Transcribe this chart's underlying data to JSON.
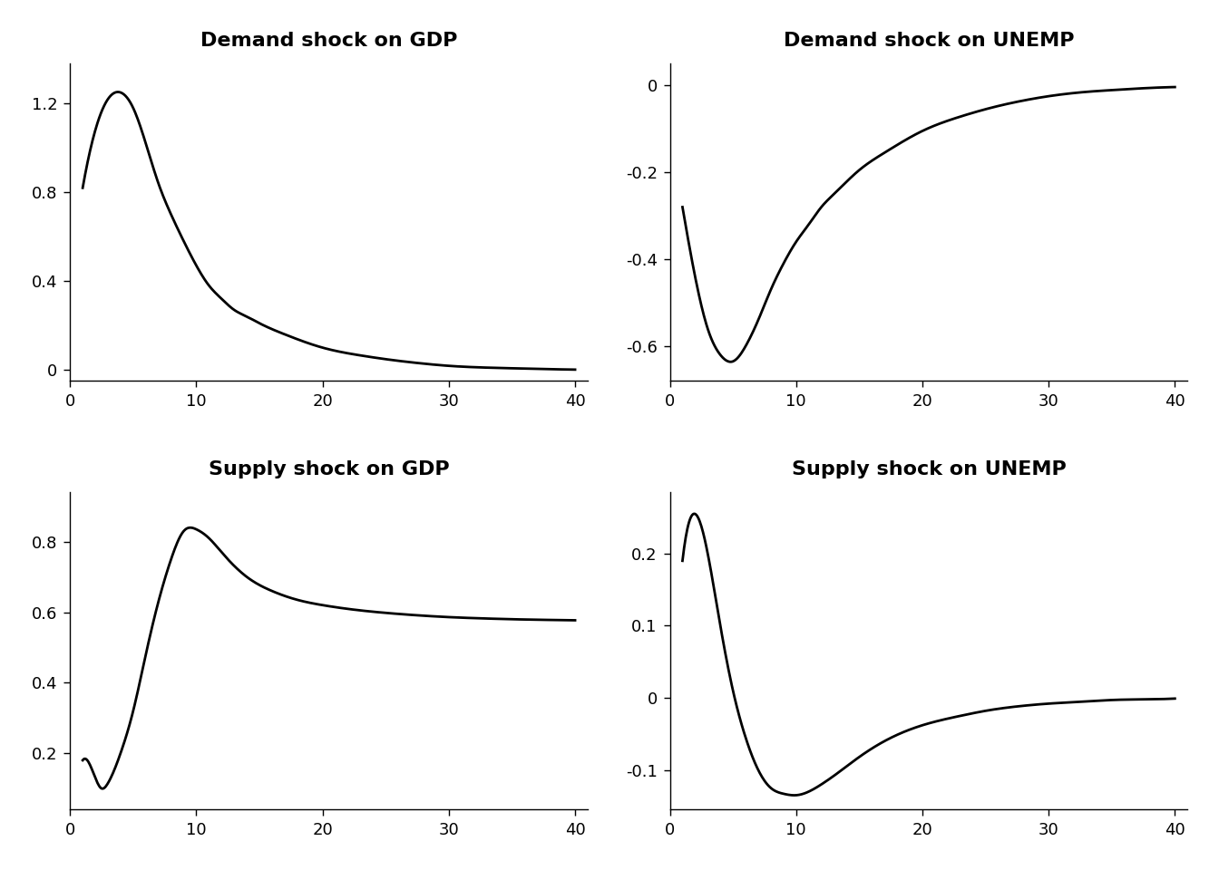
{
  "titles": [
    "Demand shock on GDP",
    "Demand shock on UNEMP",
    "Supply shock on GDP",
    "Supply shock on UNEMP"
  ],
  "xlim": [
    0,
    41
  ],
  "xticks": [
    0,
    10,
    20,
    30,
    40
  ],
  "panels": {
    "demand_gdp": {
      "ylim": [
        -0.05,
        1.38
      ],
      "yticks": [
        0.0,
        0.4,
        0.8,
        1.2
      ]
    },
    "demand_unemp": {
      "ylim": [
        -0.68,
        0.05
      ],
      "yticks": [
        -0.6,
        -0.4,
        -0.2,
        0.0
      ]
    },
    "supply_gdp": {
      "ylim": [
        0.04,
        0.94
      ],
      "yticks": [
        0.2,
        0.4,
        0.6,
        0.8
      ]
    },
    "supply_unemp": {
      "ylim": [
        -0.155,
        0.285
      ],
      "yticks": [
        -0.1,
        0.0,
        0.1,
        0.2
      ]
    }
  },
  "line_color": "#000000",
  "line_width": 2.0,
  "bg_color": "#ffffff",
  "title_fontsize": 16,
  "title_fontweight": "bold",
  "curves": {
    "demand_gdp": {
      "x": [
        1,
        2,
        3,
        4,
        5,
        6,
        7,
        8,
        9,
        10,
        11,
        12,
        13,
        14,
        15,
        17,
        20,
        23,
        25,
        28,
        30,
        33,
        35,
        38,
        40
      ],
      "y": [
        0.82,
        1.08,
        1.22,
        1.25,
        1.18,
        1.02,
        0.84,
        0.7,
        0.58,
        0.47,
        0.38,
        0.32,
        0.27,
        0.24,
        0.21,
        0.16,
        0.1,
        0.065,
        0.048,
        0.028,
        0.018,
        0.01,
        0.007,
        0.003,
        0.001
      ]
    },
    "demand_unemp": {
      "x": [
        1,
        2,
        3,
        4,
        5,
        6,
        7,
        8,
        9,
        10,
        11,
        12,
        13,
        15,
        17,
        20,
        23,
        25,
        28,
        30,
        33,
        35,
        38,
        40
      ],
      "y": [
        -0.28,
        -0.44,
        -0.56,
        -0.62,
        -0.635,
        -0.6,
        -0.54,
        -0.47,
        -0.41,
        -0.36,
        -0.32,
        -0.28,
        -0.25,
        -0.195,
        -0.155,
        -0.105,
        -0.072,
        -0.055,
        -0.035,
        -0.025,
        -0.015,
        -0.011,
        -0.006,
        -0.004
      ]
    },
    "supply_gdp": {
      "x": [
        1,
        2,
        2.5,
        3,
        4,
        5,
        6,
        7,
        8,
        9,
        10,
        11,
        12,
        14,
        16,
        18,
        20,
        23,
        25,
        28,
        30,
        33,
        35,
        38,
        40
      ],
      "y": [
        0.18,
        0.13,
        0.1,
        0.115,
        0.2,
        0.32,
        0.48,
        0.63,
        0.75,
        0.83,
        0.835,
        0.81,
        0.77,
        0.7,
        0.66,
        0.635,
        0.62,
        0.605,
        0.598,
        0.59,
        0.586,
        0.582,
        0.58,
        0.578,
        0.577
      ]
    },
    "supply_unemp": {
      "x": [
        1,
        2,
        3,
        4,
        5,
        6,
        7,
        8,
        9,
        10,
        11,
        12,
        13,
        15,
        17,
        20,
        23,
        25,
        28,
        30,
        33,
        35,
        38,
        40
      ],
      "y": [
        0.19,
        0.255,
        0.2,
        0.1,
        0.01,
        -0.055,
        -0.1,
        -0.125,
        -0.133,
        -0.135,
        -0.13,
        -0.12,
        -0.108,
        -0.082,
        -0.06,
        -0.038,
        -0.025,
        -0.018,
        -0.011,
        -0.008,
        -0.005,
        -0.003,
        -0.002,
        -0.001
      ]
    }
  }
}
